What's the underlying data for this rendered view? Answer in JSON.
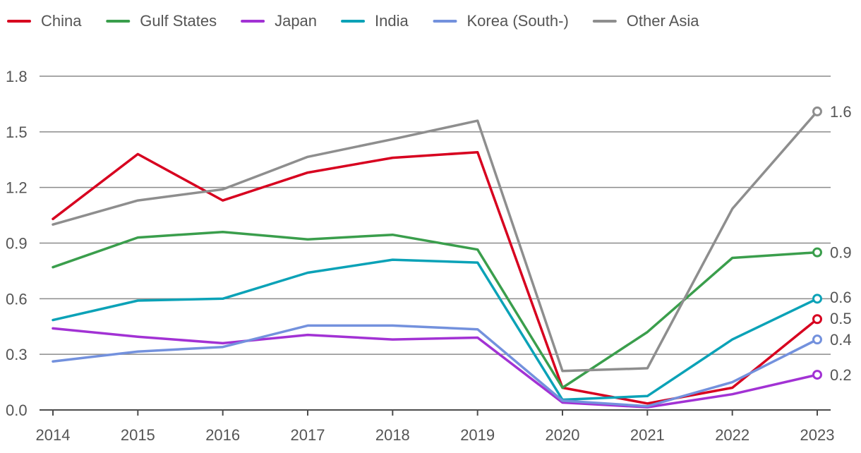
{
  "chart_data": {
    "type": "line",
    "title": "",
    "xlabel": "",
    "ylabel": "",
    "x": [
      "2014",
      "2015",
      "2016",
      "2017",
      "2018",
      "2019",
      "2020",
      "2021",
      "2022",
      "2023"
    ],
    "ylim": [
      0,
      1.8
    ],
    "yticks": [
      "0.0",
      "0.3",
      "0.6",
      "0.9",
      "1.2",
      "1.5",
      "1.8"
    ],
    "grid": true,
    "legend_position": "top",
    "series": [
      {
        "name": "China",
        "color": "#d7001f",
        "values": [
          1.03,
          1.38,
          1.13,
          1.28,
          1.36,
          1.39,
          0.12,
          0.035,
          0.12,
          0.49
        ],
        "end_label": "0.5"
      },
      {
        "name": "Gulf States",
        "color": "#3a9e4c",
        "values": [
          0.77,
          0.93,
          0.96,
          0.92,
          0.945,
          0.865,
          0.12,
          0.42,
          0.82,
          0.85
        ],
        "end_label": "0.9"
      },
      {
        "name": "Japan",
        "color": "#a232d4",
        "values": [
          0.44,
          0.395,
          0.36,
          0.405,
          0.38,
          0.39,
          0.04,
          0.015,
          0.085,
          0.19
        ],
        "end_label": "0.2"
      },
      {
        "name": "India",
        "color": "#0ba2b7",
        "values": [
          0.485,
          0.59,
          0.6,
          0.74,
          0.81,
          0.795,
          0.055,
          0.075,
          0.38,
          0.6
        ],
        "end_label": "0.6"
      },
      {
        "name": "Korea (South-)",
        "color": "#7391dd",
        "values": [
          0.262,
          0.315,
          0.34,
          0.455,
          0.455,
          0.435,
          0.05,
          0.02,
          0.15,
          0.38
        ],
        "end_label": "0.4"
      },
      {
        "name": "Other Asia",
        "color": "#8e8e8e",
        "values": [
          1.0,
          1.13,
          1.19,
          1.365,
          1.46,
          1.56,
          0.21,
          0.225,
          1.085,
          1.61
        ],
        "end_label": "1.6"
      }
    ]
  }
}
